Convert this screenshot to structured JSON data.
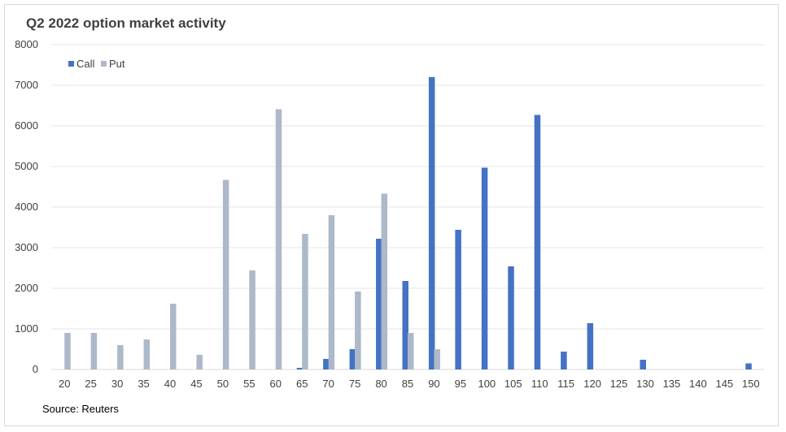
{
  "chart_data": {
    "type": "bar",
    "title": "Q2 2022 option market activity",
    "source": "Source: Reuters",
    "categories": [
      "20",
      "25",
      "30",
      "35",
      "40",
      "45",
      "50",
      "55",
      "60",
      "65",
      "70",
      "75",
      "80",
      "85",
      "90",
      "95",
      "100",
      "105",
      "110",
      "115",
      "120",
      "125",
      "130",
      "135",
      "140",
      "145",
      "150"
    ],
    "series": [
      {
        "name": "Call",
        "color": "#4472c4",
        "values": [
          0,
          0,
          0,
          0,
          0,
          0,
          0,
          0,
          0,
          40,
          260,
          500,
          3220,
          2180,
          7200,
          3440,
          4970,
          2540,
          6270,
          440,
          1140,
          0,
          240,
          0,
          0,
          0,
          150
        ]
      },
      {
        "name": "Put",
        "color": "#adb9ca",
        "values": [
          900,
          900,
          600,
          740,
          1620,
          360,
          4670,
          2440,
          6410,
          3340,
          3800,
          1920,
          4330,
          900,
          500,
          0,
          0,
          0,
          0,
          0,
          0,
          0,
          0,
          0,
          0,
          0,
          0
        ]
      }
    ],
    "y_ticks": [
      "0",
      "1000",
      "2000",
      "3000",
      "4000",
      "5000",
      "6000",
      "7000",
      "8000"
    ],
    "ylim": [
      0,
      8000
    ],
    "grid": true,
    "legend": "top-left"
  }
}
